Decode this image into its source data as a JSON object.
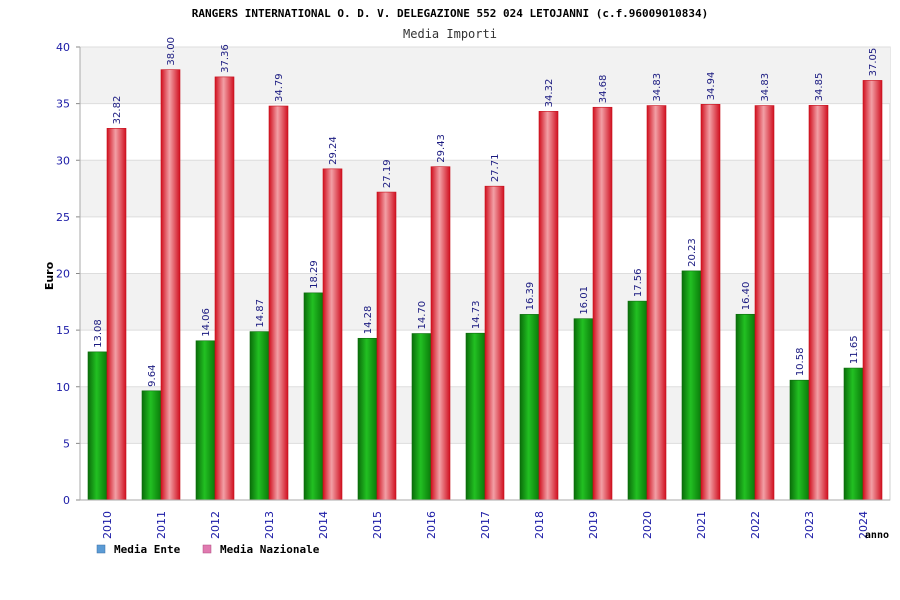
{
  "chart_data": {
    "type": "bar",
    "title": "RANGERS INTERNATIONAL O. D. V. DELEGAZIONE 552 024 LETOJANNI (c.f.96009010834)",
    "subtitle": "Media Importi",
    "ylabel": "Euro",
    "xlabel": "anno",
    "ylim": [
      0,
      40
    ],
    "yticks": [
      0,
      5,
      10,
      15,
      20,
      25,
      30,
      35,
      40
    ],
    "categories": [
      "2010",
      "2011",
      "2012",
      "2013",
      "2014",
      "2015",
      "2016",
      "2017",
      "2018",
      "2019",
      "2020",
      "2021",
      "2022",
      "2023",
      "2024"
    ],
    "series": [
      {
        "name": "Media Ente",
        "values": [
          13.08,
          9.64,
          14.06,
          14.87,
          18.29,
          14.28,
          14.7,
          14.73,
          16.39,
          16.01,
          17.56,
          20.23,
          16.4,
          10.58,
          11.65
        ],
        "labels": [
          "13.08",
          "9.64",
          "14.06",
          "14.87",
          "18.29",
          "14.28",
          "14.70",
          "14.73",
          "16.39",
          "16.01",
          "17.56",
          "20.23",
          "16.40",
          "10.58",
          "11.65"
        ],
        "color": "#1aa51a"
      },
      {
        "name": "Media Nazionale",
        "values": [
          32.82,
          38.0,
          37.36,
          34.79,
          29.24,
          27.19,
          29.43,
          27.71,
          34.32,
          34.68,
          34.83,
          34.94,
          34.83,
          34.85,
          37.05
        ],
        "labels": [
          "32.82",
          "38.00",
          "37.36",
          "34.79",
          "29.24",
          "27.19",
          "29.43",
          "27.71",
          "34.32",
          "34.68",
          "34.83",
          "34.94",
          "34.83",
          "34.85",
          "37.05"
        ],
        "color": "#e0202e"
      }
    ],
    "legend": [
      {
        "label": "Media Ente",
        "swatch_color": "#5b9bd5"
      },
      {
        "label": "Media Nazionale",
        "swatch_color": "#e07ab0"
      }
    ],
    "legend_position": "bottom-left",
    "grid": true
  }
}
